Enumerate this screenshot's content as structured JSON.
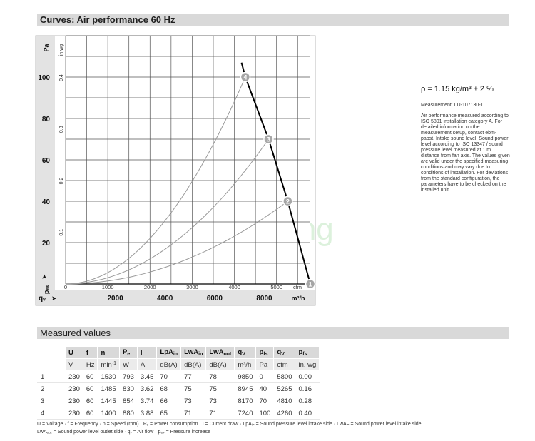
{
  "curves_title": "Curves: Air performance 60 Hz",
  "chart_data": {
    "type": "line",
    "title": "Curves: Air performance 60 Hz",
    "x_axis_top": {
      "unit": "cfm",
      "ticks": [
        "0",
        "1000",
        "2000",
        "3000",
        "4000",
        "5000"
      ],
      "range": [
        0,
        5800
      ]
    },
    "x_axis_bottom": {
      "label": "qᵥ",
      "unit": "m³/h",
      "ticks": [
        "2000",
        "4000",
        "6000",
        "8000"
      ]
    },
    "y_axis_left": {
      "label": "pₑₛ",
      "unit": "Pa",
      "ticks": [
        "20",
        "40",
        "60",
        "80",
        "100"
      ],
      "range": [
        0,
        120
      ]
    },
    "y_axis_right": {
      "unit": "in wg",
      "ticks": [
        "0.1",
        "0.2",
        "0.3",
        "0.4"
      ]
    },
    "grid": true,
    "fan_curve": {
      "points": [
        [
          4170,
          107
        ],
        [
          4260,
          100
        ],
        [
          4810,
          70
        ],
        [
          5265,
          40
        ],
        [
          5800,
          0
        ]
      ]
    },
    "operating_points": [
      {
        "label": "1",
        "x": 5800,
        "y": 0
      },
      {
        "label": "2",
        "x": 5265,
        "y": 40
      },
      {
        "label": "3",
        "x": 4810,
        "y": 70
      },
      {
        "label": "4",
        "x": 4260,
        "y": 100
      }
    ],
    "watermark": "hongsheng"
  },
  "info": {
    "density": "ρ = 1.15 kg/m³ ± 2 %",
    "measurement": "Measurement: LU-107130-1",
    "text": "Air performance measured according to ISO 5801 installation category A. For detailed information on the measurement setup, contact ebm-papst. Intake sound level: Sound power level according to ISO 13347 / sound pressure level measured at 1 m distance from fan axis. The values given are valid under the specified measuring conditions and may vary due to conditions of installation. For deviations from the standard configuration, the parameters have to be checked on the installed unit."
  },
  "measured_title": "Measured values",
  "table": {
    "headers": [
      "U",
      "f",
      "n",
      "P",
      "I",
      "LpA",
      "LwA",
      "LwA",
      "q",
      "p",
      "q",
      "p"
    ],
    "header_subs": [
      "",
      "",
      "",
      "e",
      "",
      "in",
      "in",
      "out",
      "V",
      "fs",
      "V",
      "fs"
    ],
    "units": [
      "V",
      "Hz",
      "min",
      "W",
      "A",
      "dB(A)",
      "dB(A)",
      "dB(A)",
      "m³/h",
      "Pa",
      "cfm",
      "in. wg"
    ],
    "rows": [
      [
        "1",
        "230",
        "60",
        "1530",
        "793",
        "3.45",
        "70",
        "77",
        "78",
        "9850",
        "0",
        "5800",
        "0.00"
      ],
      [
        "2",
        "230",
        "60",
        "1485",
        "830",
        "3.62",
        "68",
        "75",
        "75",
        "8945",
        "40",
        "5265",
        "0.16"
      ],
      [
        "3",
        "230",
        "60",
        "1445",
        "854",
        "3.74",
        "66",
        "73",
        "73",
        "8170",
        "70",
        "4810",
        "0.28"
      ],
      [
        "4",
        "230",
        "60",
        "1400",
        "880",
        "3.88",
        "65",
        "71",
        "71",
        "7240",
        "100",
        "4260",
        "0.40"
      ]
    ]
  },
  "legend": {
    "line1": "U = Voltage · f = Frequency · n = Speed (rpm) · Pₑ = Power consumption · I = Current draw · LpAᵢₙ = Sound pressure level intake side · LwAᵢₙ = Sound power level intake side",
    "line2": "LwAₒᵤₜ = Sound power level outlet side · qᵥ = Air flow · pₑₛ = Pressure increase"
  },
  "colors": {
    "curve": "#000000",
    "system_curves": "#999999",
    "marker_fill": "#a6a6a6",
    "grid": "#555555",
    "watermark": "#9ed89e"
  }
}
